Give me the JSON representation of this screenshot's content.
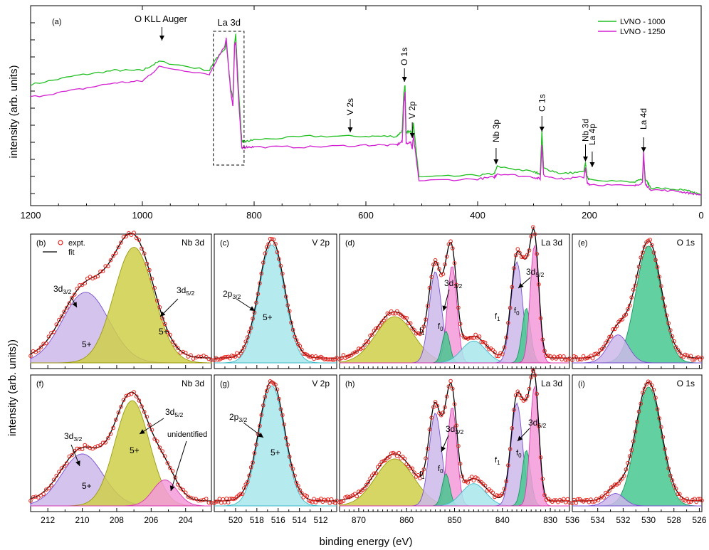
{
  "figure": {
    "ylabel_top": "intensity (arb. units)",
    "ylabel_bottom": "intensity (arb. units))",
    "xlabel": "binding energy (eV)",
    "colors": {
      "lvno1000": "#1fbf1f",
      "lvno1250": "#d21fd2",
      "expt": "#e8201a",
      "fit": "#000000",
      "purple": "#cbb8ea",
      "purple_edge": "#7a4fd0",
      "olive": "#cfcf4a",
      "olive_edge": "#9a9a10",
      "cyan": "#a8e8ec",
      "cyan_edge": "#3fb8c8",
      "green": "#48c890",
      "green_edge": "#189860",
      "pink": "#f39ad9",
      "pink_edge": "#d83ab0"
    }
  },
  "chart_data": [
    {
      "type": "line",
      "panel": "(a)",
      "xlim": [
        1200,
        0
      ],
      "xticks": [
        1200,
        1000,
        800,
        600,
        400,
        200,
        0
      ],
      "legend": [
        "LVNO - 1000",
        "LVNO - 1250"
      ],
      "legend_position": "top-right",
      "annotations": [
        "O KLL Auger",
        "La 3d",
        "O 1s",
        "V 2s",
        "V 2p",
        "Nb 3p",
        "C 1s",
        "Nb 3d",
        "La 4p",
        "La 4d"
      ],
      "annotation_x": [
        965,
        845,
        531,
        628,
        517,
        367,
        285,
        207,
        195,
        103
      ],
      "series": [
        {
          "name": "LVNO - 1000",
          "x": [
            1200,
            1120,
            1050,
            1000,
            970,
            880,
            870,
            852,
            850,
            842,
            838,
            835,
            833,
            828,
            822,
            815,
            800,
            700,
            600,
            545,
            535,
            532,
            530,
            528,
            520,
            517,
            515,
            505,
            400,
            370,
            365,
            300,
            288,
            285,
            282,
            250,
            210,
            207,
            204,
            200,
            120,
            105,
            103,
            100,
            90,
            40,
            20,
            0
          ],
          "y": [
            0.62,
            0.67,
            0.7,
            0.7,
            0.75,
            0.7,
            0.76,
            0.82,
            0.86,
            0.6,
            0.54,
            0.85,
            0.9,
            0.6,
            0.3,
            0.3,
            0.31,
            0.33,
            0.33,
            0.33,
            0.36,
            0.58,
            0.62,
            0.35,
            0.36,
            0.33,
            0.4,
            0.1,
            0.11,
            0.12,
            0.16,
            0.13,
            0.12,
            0.36,
            0.15,
            0.12,
            0.13,
            0.18,
            0.1,
            0.09,
            0.07,
            0.09,
            0.21,
            0.09,
            0.04,
            0.03,
            0.02,
            0.0
          ]
        },
        {
          "name": "LVNO - 1250",
          "x": [
            1200,
            1120,
            1050,
            1000,
            970,
            880,
            870,
            852,
            850,
            842,
            838,
            835,
            833,
            828,
            822,
            815,
            800,
            700,
            600,
            545,
            535,
            532,
            530,
            528,
            520,
            517,
            515,
            505,
            400,
            370,
            365,
            300,
            288,
            285,
            282,
            250,
            210,
            207,
            204,
            200,
            120,
            105,
            103,
            100,
            90,
            40,
            20,
            0
          ],
          "y": [
            0.55,
            0.59,
            0.63,
            0.64,
            0.72,
            0.68,
            0.74,
            0.84,
            0.88,
            0.58,
            0.5,
            0.84,
            0.86,
            0.55,
            0.26,
            0.27,
            0.27,
            0.27,
            0.28,
            0.28,
            0.3,
            0.52,
            0.58,
            0.29,
            0.3,
            0.26,
            0.33,
            0.08,
            0.09,
            0.1,
            0.12,
            0.1,
            0.09,
            0.28,
            0.11,
            0.09,
            0.1,
            0.15,
            0.07,
            0.06,
            0.05,
            0.07,
            0.24,
            0.06,
            0.03,
            0.02,
            0.01,
            0.0
          ]
        }
      ]
    },
    {
      "type": "area",
      "panel": "(b)",
      "label": "Nb 3d",
      "xlim": [
        213,
        202.5
      ],
      "xticks": [
        212,
        210,
        208,
        206,
        204
      ],
      "legend": [
        "expt.",
        "fit"
      ],
      "annotations": [
        "3d3/2",
        "3d5/2",
        "5+",
        "5+"
      ],
      "series": [
        {
          "name": "3d3/2",
          "center": 209.8,
          "height": 0.58,
          "width": 1.35
        },
        {
          "name": "3d5/2",
          "center": 207.0,
          "height": 0.95,
          "width": 1.15
        }
      ]
    },
    {
      "type": "area",
      "panel": "(c)",
      "label": "V 2p",
      "xlim": [
        522,
        510.5
      ],
      "xticks": [
        520,
        518,
        516,
        514,
        512
      ],
      "annotations": [
        "2p3/2",
        "5+"
      ],
      "series": [
        {
          "name": "2p3/2",
          "center": 516.6,
          "height": 0.97,
          "width": 1.2
        }
      ]
    },
    {
      "type": "area",
      "panel": "(d)",
      "label": "La 3d",
      "xlim": [
        874,
        826
      ],
      "xticks": [
        870,
        860,
        850,
        840,
        830
      ],
      "annotations": [
        "3d3/2",
        "3d5/2",
        "f1",
        "f0",
        "f1",
        "f0"
      ],
      "series": [
        {
          "name": "sat",
          "center": 862.5,
          "height": 0.38,
          "width": 4.0
        },
        {
          "name": "f1",
          "center": 854.0,
          "height": 0.75,
          "width": 1.3
        },
        {
          "name": "f0",
          "center": 850.5,
          "height": 0.8,
          "width": 1.0
        },
        {
          "name": "green",
          "center": 851.8,
          "height": 0.26,
          "width": 0.8
        },
        {
          "name": "cyan",
          "center": 846.0,
          "height": 0.18,
          "width": 2.5
        },
        {
          "name": "f1",
          "center": 837.0,
          "height": 0.83,
          "width": 1.2
        },
        {
          "name": "green",
          "center": 835.0,
          "height": 0.45,
          "width": 0.9
        },
        {
          "name": "f0",
          "center": 833.3,
          "height": 0.97,
          "width": 0.9
        }
      ]
    },
    {
      "type": "area",
      "panel": "(e)",
      "label": "O 1s",
      "xlim": [
        536,
        525.8
      ],
      "xticks": [
        536,
        534,
        532,
        530,
        528,
        526
      ],
      "series": [
        {
          "name": "main",
          "center": 530.0,
          "height": 0.96,
          "width": 1.0
        },
        {
          "name": "shoulder",
          "center": 532.4,
          "height": 0.23,
          "width": 0.8
        }
      ]
    },
    {
      "type": "area",
      "panel": "(f)",
      "label": "Nb 3d",
      "xlim": [
        213,
        202.5
      ],
      "xticks": [
        212,
        210,
        208,
        206,
        204
      ],
      "annotations": [
        "3d3/2",
        "3d5/2",
        "unidentified",
        "5+",
        "5+"
      ],
      "series": [
        {
          "name": "3d3/2",
          "center": 210.0,
          "height": 0.42,
          "width": 1.2
        },
        {
          "name": "3d5/2",
          "center": 207.1,
          "height": 0.85,
          "width": 1.0
        },
        {
          "name": "unidentified",
          "center": 205.2,
          "height": 0.21,
          "width": 0.7
        }
      ]
    },
    {
      "type": "area",
      "panel": "(g)",
      "label": "V 2p",
      "xlim": [
        522,
        510.5
      ],
      "xticks": [
        520,
        518,
        516,
        514,
        512
      ],
      "annotations": [
        "2p3/2",
        "5+"
      ],
      "series": [
        {
          "name": "2p3/2",
          "center": 516.6,
          "height": 0.97,
          "width": 1.2
        }
      ]
    },
    {
      "type": "area",
      "panel": "(h)",
      "label": "La 3d",
      "xlim": [
        874,
        826
      ],
      "xticks": [
        870,
        860,
        850,
        840,
        830
      ],
      "annotations": [
        "3d3/2",
        "3d5/2",
        "f1",
        "f0",
        "f1",
        "f0"
      ],
      "series": [
        {
          "name": "sat",
          "center": 862.5,
          "height": 0.38,
          "width": 4.0
        },
        {
          "name": "f1",
          "center": 854.0,
          "height": 0.75,
          "width": 1.3
        },
        {
          "name": "f0",
          "center": 850.5,
          "height": 0.8,
          "width": 1.0
        },
        {
          "name": "green",
          "center": 851.8,
          "height": 0.26,
          "width": 0.8
        },
        {
          "name": "cyan",
          "center": 846.0,
          "height": 0.18,
          "width": 2.5
        },
        {
          "name": "f1",
          "center": 837.0,
          "height": 0.83,
          "width": 1.2
        },
        {
          "name": "green",
          "center": 835.0,
          "height": 0.45,
          "width": 0.9
        },
        {
          "name": "f0",
          "center": 833.3,
          "height": 0.97,
          "width": 0.9
        }
      ]
    },
    {
      "type": "area",
      "panel": "(i)",
      "label": "O 1s",
      "xlim": [
        536,
        525.8
      ],
      "xticks": [
        536,
        534,
        532,
        530,
        528,
        526
      ],
      "series": [
        {
          "name": "main",
          "center": 530.0,
          "height": 0.96,
          "width": 1.0
        },
        {
          "name": "shoulder",
          "center": 532.6,
          "height": 0.1,
          "width": 0.7
        }
      ]
    }
  ]
}
